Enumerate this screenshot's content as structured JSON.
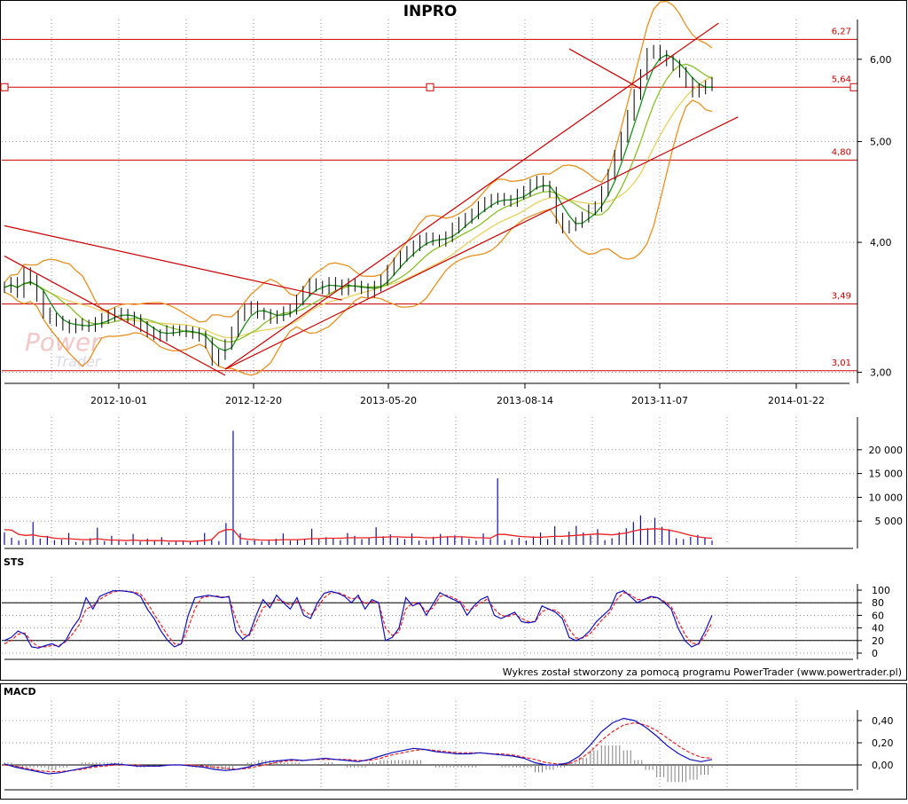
{
  "colors": {
    "bars": "#000000",
    "ma_fast": "#1a8f1a",
    "ma_mid": "#88c028",
    "ma_slow": "#e8d060",
    "bollinger": "#e89020",
    "level_lines": "#cc0000",
    "volume": "#1010a0",
    "volume_avg": "#ee2020",
    "sts_k": "#1010c0",
    "sts_d": "#ee2020",
    "macd_line": "#1010c0",
    "macd_signal": "#ee2020",
    "macd_hist": "#808080"
  },
  "chart_data": [
    {
      "panel": "price",
      "type": "line",
      "title": "INPRO",
      "watermark": [
        "Power",
        "Trader"
      ],
      "scale": "log",
      "ylim": [
        2.95,
        6.45
      ],
      "y_ticks": [
        "3,00",
        "4,00",
        "5,00",
        "6,00"
      ],
      "x_ticks": [
        "2012-10-01",
        "2012-12-20",
        "2013-05-20",
        "2013-08-14",
        "2013-11-07",
        "2014-01-22"
      ],
      "grid": true,
      "horizontal_levels": [
        {
          "value": 6.27,
          "label": "6,27"
        },
        {
          "value": 5.64,
          "label": "5,64"
        },
        {
          "value": 4.8,
          "label": "4,80"
        },
        {
          "value": 3.49,
          "label": "3,49"
        },
        {
          "value": 3.01,
          "label": "3,01"
        }
      ],
      "close_series": [
        3.62,
        3.66,
        3.58,
        3.74,
        3.68,
        3.55,
        3.42,
        3.38,
        3.36,
        3.33,
        3.31,
        3.34,
        3.33,
        3.32,
        3.35,
        3.38,
        3.4,
        3.42,
        3.41,
        3.39,
        3.37,
        3.32,
        3.28,
        3.26,
        3.25,
        3.29,
        3.29,
        3.29,
        3.28,
        3.27,
        3.25,
        3.2,
        3.08,
        3.12,
        3.19,
        3.28,
        3.4,
        3.45,
        3.47,
        3.42,
        3.41,
        3.38,
        3.4,
        3.43,
        3.45,
        3.52,
        3.59,
        3.65,
        3.63,
        3.61,
        3.66,
        3.64,
        3.6,
        3.65,
        3.63,
        3.61,
        3.58,
        3.63,
        3.68,
        3.76,
        3.82,
        3.88,
        3.92,
        3.97,
        4.02,
        4.04,
        4.02,
        4.01,
        4.05,
        4.13,
        4.18,
        4.22,
        4.26,
        4.33,
        4.37,
        4.4,
        4.41,
        4.39,
        4.38,
        4.45,
        4.48,
        4.55,
        4.58,
        4.53,
        4.47,
        4.22,
        4.13,
        4.15,
        4.18,
        4.23,
        4.3,
        4.33,
        4.48,
        4.65,
        4.85,
        5.05,
        5.3,
        5.55,
        5.8,
        6.08,
        6.12,
        6.05,
        5.98,
        5.92,
        5.83,
        5.7,
        5.58,
        5.62,
        5.66,
        5.7
      ],
      "series": [
        {
          "name": "",
          "role": "ma_fast"
        },
        {
          "name": "",
          "role": "ma_mid"
        },
        {
          "name": "",
          "role": "ma_slow"
        },
        {
          "name": "",
          "role": "bollinger_upper"
        },
        {
          "name": "",
          "role": "bollinger_lower"
        }
      ],
      "trendlines": [
        {
          "from": [
            0,
            4.15
          ],
          "to": [
            52,
            3.52
          ]
        },
        {
          "from": [
            0,
            3.88
          ],
          "to": [
            34,
            2.98
          ]
        },
        {
          "from": [
            34,
            3.02
          ],
          "to": [
            113,
            5.28
          ]
        },
        {
          "from": [
            34,
            3.02
          ],
          "to": [
            110,
            6.5
          ]
        },
        {
          "from": [
            87,
            6.14
          ],
          "to": [
            98,
            5.62
          ]
        }
      ]
    },
    {
      "panel": "volume",
      "type": "bar",
      "y_ticks": [
        "5 000",
        "10 000",
        "15 000",
        "20 000"
      ],
      "ylim": [
        0,
        25000
      ],
      "x_ticks": [
        "2012-10-01",
        "2012-12-20",
        "2013-05-20",
        "2013-08-14",
        "2013-11-07",
        "2014-01-22"
      ],
      "values": [
        2600,
        1500,
        900,
        1200,
        4800,
        1300,
        1900,
        1000,
        1100,
        2500,
        600,
        800,
        1400,
        3600,
        800,
        1900,
        900,
        600,
        2300,
        700,
        1300,
        800,
        1600,
        500,
        700,
        800,
        600,
        900,
        2500,
        1200,
        800,
        4600,
        24000,
        2400,
        900,
        1100,
        700,
        900,
        1300,
        2400,
        900,
        1000,
        1300,
        3400,
        1200,
        1600,
        1300,
        1000,
        2500,
        1900,
        1200,
        1400,
        3700,
        1800,
        2200,
        1500,
        1200,
        2400,
        900,
        1000,
        1700,
        2300,
        1800,
        2000,
        1600,
        1300,
        900,
        2400,
        1200,
        14000,
        1000,
        1100,
        1500,
        900,
        1800,
        2600,
        1200,
        3900,
        1100,
        2800,
        4000,
        2600,
        2000,
        3300,
        1000,
        1400,
        2700,
        3500,
        4800,
        6200,
        3500,
        5700,
        3800,
        3300,
        1400,
        1200,
        1700,
        2100,
        1600,
        900
      ],
      "average_line": [
        3200,
        3100,
        2200,
        2000,
        2100,
        1800,
        1700,
        1400,
        1300,
        1300,
        1200,
        1100,
        1100,
        1300,
        1100,
        1000,
        1000,
        900,
        1000,
        900,
        900,
        900,
        900,
        800,
        800,
        800,
        700,
        800,
        900,
        1100,
        2600,
        3200,
        3200,
        1400,
        1200,
        1100,
        1000,
        1000,
        1000,
        1100,
        1100,
        1100,
        1200,
        1300,
        1300,
        1400,
        1400,
        1400,
        1500,
        1500,
        1500,
        1500,
        1600,
        1600,
        1700,
        1700,
        1600,
        1600,
        1600,
        1500,
        1500,
        1600,
        1700,
        1700,
        1700,
        1600,
        1500,
        1500,
        1400,
        2200,
        2200,
        2000,
        1800,
        1700,
        1600,
        1600,
        1700,
        1800,
        1800,
        1900,
        2000,
        2100,
        2200,
        2300,
        2200,
        2100,
        2300,
        2500,
        2900,
        3200,
        3300,
        3400,
        3300,
        3100,
        2800,
        2400,
        2000,
        1700,
        1500,
        1400
      ]
    },
    {
      "panel": "STS",
      "type": "line",
      "title": "STS",
      "y_ticks": [
        "0",
        "20",
        "40",
        "60",
        "80",
        "100"
      ],
      "ylim": [
        0,
        100
      ],
      "reference_lines": [
        20,
        80
      ],
      "series": [
        {
          "name": "",
          "role": "k",
          "values": [
            20,
            25,
            35,
            30,
            10,
            8,
            12,
            15,
            10,
            20,
            40,
            55,
            88,
            70,
            90,
            95,
            99,
            99,
            98,
            96,
            90,
            70,
            55,
            35,
            20,
            10,
            15,
            60,
            88,
            90,
            92,
            90,
            88,
            90,
            35,
            22,
            30,
            60,
            85,
            72,
            92,
            80,
            70,
            88,
            60,
            55,
            80,
            95,
            98,
            95,
            90,
            80,
            92,
            70,
            85,
            80,
            20,
            25,
            40,
            88,
            75,
            80,
            60,
            78,
            96,
            90,
            85,
            80,
            60,
            75,
            85,
            90,
            60,
            55,
            60,
            65,
            50,
            48,
            50,
            75,
            70,
            65,
            55,
            25,
            20,
            25,
            35,
            50,
            60,
            70,
            95,
            99,
            90,
            80,
            85,
            90,
            88,
            80,
            70,
            40,
            20,
            10,
            15,
            35,
            60
          ]
        },
        {
          "name": "",
          "role": "d",
          "values": [
            15,
            20,
            30,
            32,
            18,
            10,
            10,
            12,
            12,
            18,
            30,
            45,
            70,
            75,
            85,
            92,
            97,
            99,
            98,
            97,
            94,
            80,
            62,
            45,
            28,
            15,
            14,
            40,
            70,
            88,
            90,
            91,
            89,
            89,
            55,
            30,
            28,
            48,
            72,
            78,
            85,
            82,
            76,
            82,
            68,
            60,
            72,
            88,
            96,
            96,
            92,
            86,
            88,
            78,
            82,
            80,
            40,
            28,
            34,
            70,
            80,
            78,
            66,
            72,
            90,
            92,
            88,
            82,
            68,
            72,
            80,
            86,
            70,
            60,
            58,
            62,
            55,
            50,
            50,
            66,
            70,
            68,
            60,
            38,
            24,
            24,
            30,
            42,
            55,
            65,
            85,
            96,
            93,
            85,
            85,
            88,
            88,
            82,
            74,
            52,
            30,
            16,
            14,
            28,
            48
          ]
        }
      ]
    },
    {
      "panel": "MACD",
      "type": "line",
      "title": "MACD",
      "y_ticks": [
        "0,00",
        "0,20",
        "0,40"
      ],
      "ylim": [
        -0.1,
        0.48
      ],
      "reference_lines": [
        0
      ],
      "series": [
        {
          "name": "",
          "role": "macd",
          "values": [
            0.01,
            -0.02,
            -0.04,
            -0.06,
            -0.08,
            -0.07,
            -0.05,
            -0.03,
            -0.01,
            0.0,
            0.01,
            0.0,
            -0.01,
            -0.01,
            -0.01,
            0.0,
            0.0,
            -0.01,
            -0.02,
            -0.04,
            -0.05,
            -0.04,
            -0.02,
            0.01,
            0.03,
            0.04,
            0.05,
            0.04,
            0.05,
            0.06,
            0.05,
            0.04,
            0.03,
            0.05,
            0.08,
            0.11,
            0.13,
            0.15,
            0.14,
            0.12,
            0.11,
            0.1,
            0.1,
            0.11,
            0.1,
            0.09,
            0.08,
            0.06,
            0.02,
            0.0,
            0.0,
            0.02,
            0.08,
            0.18,
            0.3,
            0.38,
            0.42,
            0.4,
            0.34,
            0.26,
            0.17,
            0.1,
            0.05,
            0.03,
            0.05
          ]
        },
        {
          "name": "",
          "role": "signal",
          "values": [
            0.0,
            -0.01,
            -0.03,
            -0.05,
            -0.06,
            -0.06,
            -0.05,
            -0.04,
            -0.02,
            -0.01,
            0.0,
            0.0,
            0.0,
            -0.01,
            -0.01,
            0.0,
            0.0,
            0.0,
            -0.01,
            -0.02,
            -0.03,
            -0.04,
            -0.03,
            -0.01,
            0.01,
            0.03,
            0.04,
            0.04,
            0.05,
            0.05,
            0.05,
            0.05,
            0.04,
            0.04,
            0.06,
            0.09,
            0.11,
            0.13,
            0.14,
            0.13,
            0.12,
            0.11,
            0.11,
            0.11,
            0.1,
            0.1,
            0.09,
            0.07,
            0.05,
            0.02,
            0.01,
            0.01,
            0.05,
            0.12,
            0.22,
            0.3,
            0.36,
            0.38,
            0.36,
            0.31,
            0.24,
            0.17,
            0.11,
            0.07,
            0.06
          ]
        }
      ]
    }
  ],
  "footer_credit": "Wykres został stworzony za pomocą programu PowerTrader (www.powertrader.pl)"
}
